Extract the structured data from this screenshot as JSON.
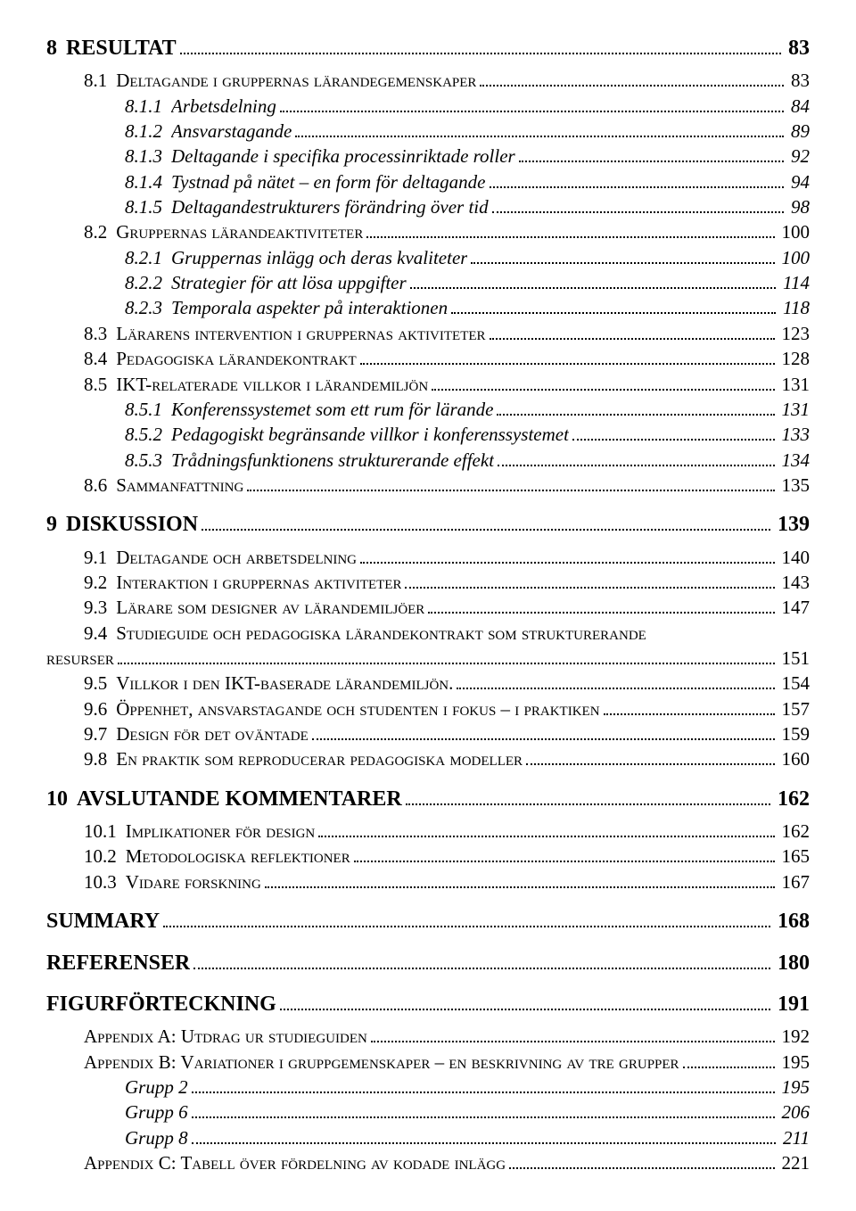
{
  "entries": [
    {
      "level": 1,
      "num": "8",
      "title": "RESULTAT",
      "page": "83"
    },
    {
      "level": 2,
      "num": "8.1",
      "title": "Deltagande i gruppernas lärandegemenskaper",
      "smallcaps": true,
      "page": "83"
    },
    {
      "level": 3,
      "num": "8.1.1",
      "title": "Arbetsdelning",
      "page": "84"
    },
    {
      "level": 3,
      "num": "8.1.2",
      "title": "Ansvarstagande",
      "page": "89"
    },
    {
      "level": 3,
      "num": "8.1.3",
      "title": "Deltagande i specifika processinriktade roller",
      "page": "92"
    },
    {
      "level": 3,
      "num": "8.1.4",
      "title": "Tystnad på nätet – en form för deltagande",
      "page": "94"
    },
    {
      "level": 3,
      "num": "8.1.5",
      "title": "Deltagandestrukturers förändring över tid",
      "page": "98"
    },
    {
      "level": 2,
      "num": "8.2",
      "title": "Gruppernas lärandeaktiviteter",
      "smallcaps": true,
      "page": "100"
    },
    {
      "level": 3,
      "num": "8.2.1",
      "title": "Gruppernas inlägg och deras kvaliteter",
      "page": "100"
    },
    {
      "level": 3,
      "num": "8.2.2",
      "title": "Strategier för att lösa uppgifter",
      "page": "114"
    },
    {
      "level": 3,
      "num": "8.2.3",
      "title": "Temporala aspekter på interaktionen",
      "page": "118"
    },
    {
      "level": 2,
      "num": "8.3",
      "title": "Lärarens intervention i gruppernas aktiviteter",
      "smallcaps": true,
      "page": "123"
    },
    {
      "level": 2,
      "num": "8.4",
      "title": "Pedagogiska lärandekontrakt",
      "smallcaps": true,
      "page": "128"
    },
    {
      "level": 2,
      "num": "8.5",
      "title": "IKT-relaterade villkor i lärandemiljön",
      "smallcaps": true,
      "page": "131"
    },
    {
      "level": 3,
      "num": "8.5.1",
      "title": "Konferenssystemet som ett rum för lärande",
      "page": "131"
    },
    {
      "level": 3,
      "num": "8.5.2",
      "title": "Pedagogiskt begränsande villkor i konferenssystemet",
      "page": "133"
    },
    {
      "level": 3,
      "num": "8.5.3",
      "title": "Trådningsfunktionens strukturerande effekt",
      "page": "134"
    },
    {
      "level": 2,
      "num": "8.6",
      "title": "Sammanfattning",
      "smallcaps": true,
      "page": "135"
    },
    {
      "level": 1,
      "num": "9",
      "title": "DISKUSSION",
      "page": "139"
    },
    {
      "level": 2,
      "num": "9.1",
      "title": "Deltagande och arbetsdelning",
      "smallcaps": true,
      "page": "140"
    },
    {
      "level": 2,
      "num": "9.2",
      "title": "Interaktion i gruppernas aktiviteter",
      "smallcaps": true,
      "page": "143"
    },
    {
      "level": 2,
      "num": "9.3",
      "title": "Lärare som designer av lärandemiljöer",
      "smallcaps": true,
      "page": "147"
    },
    {
      "level": 2,
      "num": "9.4",
      "title": "Studieguide och pedagogiska lärandekontrakt som strukturerande resurser",
      "smallcaps": true,
      "page": "151",
      "wrap": true
    },
    {
      "level": 2,
      "num": "9.5",
      "title": "Villkor i den IKT-baserade lärandemiljön.",
      "smallcaps": true,
      "page": "154"
    },
    {
      "level": 2,
      "num": "9.6",
      "title": "Öppenhet, ansvarstagande och studenten i fokus – i praktiken",
      "smallcaps": true,
      "page": "157"
    },
    {
      "level": 2,
      "num": "9.7",
      "title": "Design för det oväntade",
      "smallcaps": true,
      "page": "159"
    },
    {
      "level": 2,
      "num": "9.8",
      "title": "En praktik som reproducerar pedagogiska modeller",
      "smallcaps": true,
      "page": "160"
    },
    {
      "level": 1,
      "num": "10",
      "title": "AVSLUTANDE KOMMENTARER",
      "page": "162"
    },
    {
      "level": 2,
      "num": "10.1",
      "title": "Implikationer för design",
      "smallcaps": true,
      "page": "162"
    },
    {
      "level": 2,
      "num": "10.2",
      "title": "Metodologiska reflektioner",
      "smallcaps": true,
      "page": "165"
    },
    {
      "level": 2,
      "num": "10.3",
      "title": "Vidare forskning",
      "smallcaps": true,
      "page": "167"
    },
    {
      "level": 1,
      "num": "",
      "title": "SUMMARY",
      "page": "168"
    },
    {
      "level": 1,
      "num": "",
      "title": "REFERENSER",
      "page": "180"
    },
    {
      "level": 1,
      "num": "",
      "title": "FIGURFÖRTECKNING",
      "page": "191"
    },
    {
      "level": 2,
      "appendix": true,
      "title": "Appendix A: Utdrag ur studieguiden",
      "page": "192"
    },
    {
      "level": 2,
      "appendix": true,
      "title": "Appendix B: Variationer i gruppgemenskaper – en beskrivning av tre grupper",
      "page": "195"
    },
    {
      "level": 3,
      "appendix": true,
      "italic": true,
      "title": "Grupp 2",
      "page": "195"
    },
    {
      "level": 3,
      "appendix": true,
      "italic": true,
      "title": "Grupp 6",
      "page": "206"
    },
    {
      "level": 3,
      "appendix": true,
      "italic": true,
      "title": "Grupp 8",
      "page": "211"
    },
    {
      "level": 2,
      "appendix": true,
      "title": "Appendix C: Tabell över fördelning av kodade inlägg",
      "page": "221"
    }
  ]
}
